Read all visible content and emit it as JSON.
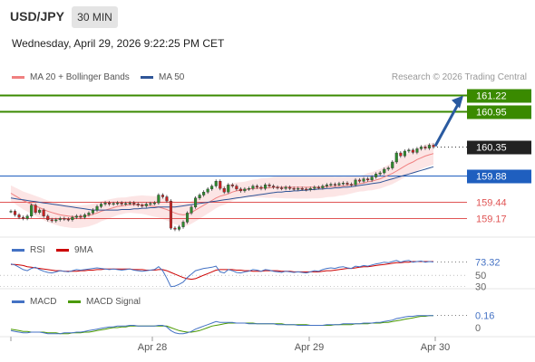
{
  "header": {
    "symbol": "USD/JPY",
    "interval": "30 MIN",
    "datetime": "Wednesday, April 29, 2026 9:22:25 PM CET",
    "credit": "Research © 2026 Trading Central"
  },
  "legend": {
    "main": [
      {
        "label": "MA 20 + Bollinger Bands",
        "color": "#f08080"
      },
      {
        "label": "MA 50",
        "color": "#2f5597"
      }
    ],
    "rsi": [
      {
        "label": "RSI",
        "color": "#4472c4"
      },
      {
        "label": "9MA",
        "color": "#cc0000"
      }
    ],
    "macd": [
      {
        "label": "MACD",
        "color": "#4472c4"
      },
      {
        "label": "MACD Signal",
        "color": "#4a9a00"
      }
    ]
  },
  "colors": {
    "target": "#3a8a00",
    "pivot": "#1f5fbf",
    "support": "#e05555",
    "current": "#222222",
    "bollinger": "#fbdcdc",
    "arrow": "#2a5aa0"
  },
  "chart_data": [
    {
      "type": "candlestick",
      "ylim": [
        158.85,
        161.35
      ],
      "x_ticks": [
        "Apr 28",
        "Apr 29",
        "Apr 30"
      ],
      "levels": [
        {
          "name": "target-2",
          "value": 161.22,
          "label": "161.22",
          "kind": "resistance"
        },
        {
          "name": "target-1",
          "value": 160.95,
          "label": "160.95",
          "kind": "resistance"
        },
        {
          "name": "last-price",
          "value": 160.35,
          "label": "160.35",
          "kind": "current"
        },
        {
          "name": "pivot",
          "value": 159.88,
          "label": "159.88",
          "kind": "pivot"
        },
        {
          "name": "support-1",
          "value": 159.44,
          "label": "159.44",
          "kind": "support"
        },
        {
          "name": "support-2",
          "value": 159.17,
          "label": "159.17",
          "kind": "support"
        }
      ],
      "close": [
        159.28,
        159.22,
        159.18,
        159.16,
        159.2,
        159.38,
        159.26,
        159.3,
        159.2,
        159.14,
        159.12,
        159.14,
        159.16,
        159.15,
        159.14,
        159.18,
        159.2,
        159.18,
        159.22,
        159.25,
        159.3,
        159.36,
        159.4,
        159.42,
        159.4,
        159.41,
        159.42,
        159.4,
        159.41,
        159.42,
        159.4,
        159.38,
        159.37,
        159.4,
        159.41,
        159.42,
        159.55,
        159.52,
        159.45,
        159.0,
        158.98,
        159.02,
        159.1,
        159.25,
        159.35,
        159.5,
        159.55,
        159.6,
        159.65,
        159.7,
        159.78,
        159.66,
        159.6,
        159.72,
        159.7,
        159.65,
        159.62,
        159.65,
        159.66,
        159.7,
        159.68,
        159.66,
        159.72,
        159.7,
        159.68,
        159.67,
        159.66,
        159.68,
        159.66,
        159.65,
        159.66,
        159.65,
        159.64,
        159.66,
        159.68,
        159.67,
        159.7,
        159.72,
        159.73,
        159.72,
        159.74,
        159.75,
        159.73,
        159.72,
        159.8,
        159.78,
        159.82,
        159.8,
        159.85,
        159.9,
        159.92,
        159.98,
        160.0,
        160.1,
        160.25,
        160.2,
        160.28,
        160.3,
        160.26,
        160.32,
        160.35,
        160.33,
        160.38,
        160.35
      ],
      "ma20": [
        159.58,
        159.54,
        159.5,
        159.46,
        159.43,
        159.4,
        159.37,
        159.34,
        159.31,
        159.28,
        159.26,
        159.24,
        159.22,
        159.21,
        159.2,
        159.19,
        159.19,
        159.19,
        159.2,
        159.21,
        159.23,
        159.25,
        159.28,
        159.3,
        159.32,
        159.34,
        159.36,
        159.37,
        159.38,
        159.39,
        159.39,
        159.39,
        159.39,
        159.38,
        159.37,
        159.36,
        159.35,
        159.33,
        159.31,
        159.28,
        159.25,
        159.23,
        159.22,
        159.23,
        159.26,
        159.3,
        159.34,
        159.38,
        159.42,
        159.46,
        159.5,
        159.53,
        159.55,
        159.57,
        159.6,
        159.62,
        159.63,
        159.64,
        159.65,
        159.66,
        159.66,
        159.67,
        159.67,
        159.67,
        159.68,
        159.68,
        159.68,
        159.68,
        159.68,
        159.68,
        159.68,
        159.68,
        159.68,
        159.68,
        159.68,
        159.68,
        159.68,
        159.69,
        159.69,
        159.69,
        159.7,
        159.7,
        159.71,
        159.72,
        159.73,
        159.74,
        159.75,
        159.77,
        159.78,
        159.8,
        159.82,
        159.85,
        159.88,
        159.91,
        159.95,
        159.99,
        160.03,
        160.07,
        160.1,
        160.14,
        160.17,
        160.2,
        160.22,
        160.24
      ],
      "ma50": [
        159.5,
        159.49,
        159.48,
        159.47,
        159.46,
        159.45,
        159.44,
        159.43,
        159.42,
        159.41,
        159.4,
        159.39,
        159.38,
        159.37,
        159.36,
        159.35,
        159.34,
        159.33,
        159.32,
        159.31,
        159.3,
        159.3,
        159.3,
        159.3,
        159.3,
        159.3,
        159.3,
        159.31,
        159.31,
        159.31,
        159.32,
        159.32,
        159.33,
        159.33,
        159.34,
        159.34,
        159.35,
        159.35,
        159.35,
        159.35,
        159.35,
        159.36,
        159.37,
        159.38,
        159.39,
        159.4,
        159.41,
        159.42,
        159.43,
        159.44,
        159.45,
        159.46,
        159.47,
        159.48,
        159.49,
        159.5,
        159.51,
        159.52,
        159.53,
        159.54,
        159.55,
        159.56,
        159.57,
        159.58,
        159.59,
        159.6,
        159.6,
        159.61,
        159.61,
        159.62,
        159.62,
        159.63,
        159.63,
        159.64,
        159.64,
        159.65,
        159.65,
        159.66,
        159.66,
        159.67,
        159.67,
        159.68,
        159.68,
        159.69,
        159.7,
        159.71,
        159.72,
        159.73,
        159.74,
        159.75,
        159.76,
        159.78,
        159.8,
        159.82,
        159.84,
        159.86,
        159.88,
        159.9,
        159.92,
        159.94,
        159.96,
        159.98,
        160.0,
        160.02
      ]
    },
    {
      "type": "line",
      "name": "RSI",
      "ylim": [
        28,
        82
      ],
      "tick_labels": [
        "73.32",
        "50",
        "30"
      ],
      "ticks": [
        73.32,
        50,
        30
      ],
      "series": [
        {
          "name": "RSI",
          "values": [
            70,
            68,
            64,
            60,
            58,
            62,
            64,
            60,
            57,
            55,
            54,
            56,
            58,
            57,
            56,
            58,
            60,
            59,
            60,
            61,
            62,
            63,
            62,
            61,
            60,
            61,
            60,
            59,
            60,
            61,
            59,
            58,
            57,
            58,
            59,
            60,
            65,
            58,
            45,
            30,
            31,
            34,
            38,
            46,
            52,
            58,
            60,
            62,
            63,
            64,
            66,
            56,
            54,
            60,
            58,
            55,
            54,
            56,
            57,
            60,
            59,
            57,
            60,
            59,
            57,
            56,
            55,
            57,
            56,
            55,
            56,
            55,
            54,
            56,
            58,
            57,
            60,
            62,
            63,
            62,
            64,
            65,
            63,
            62,
            66,
            65,
            67,
            66,
            68,
            70,
            71,
            73,
            72,
            74,
            76,
            73,
            75,
            76,
            73,
            74,
            75,
            73,
            74,
            73.32
          ]
        },
        {
          "name": "9MA",
          "values": [
            69,
            69,
            68,
            67,
            65,
            64,
            63,
            62,
            61,
            60,
            59,
            58,
            58,
            57,
            57,
            57,
            57,
            58,
            58,
            59,
            59,
            60,
            60,
            61,
            61,
            61,
            61,
            61,
            61,
            61,
            60,
            60,
            60,
            59,
            59,
            59,
            60,
            60,
            58,
            55,
            52,
            49,
            46,
            44,
            43,
            44,
            47,
            50,
            53,
            56,
            59,
            60,
            60,
            60,
            60,
            59,
            59,
            58,
            58,
            57,
            57,
            57,
            58,
            58,
            58,
            58,
            57,
            57,
            57,
            56,
            56,
            56,
            56,
            56,
            56,
            56,
            57,
            58,
            58,
            59,
            60,
            61,
            62,
            62,
            63,
            64,
            65,
            65,
            66,
            67,
            68,
            69,
            70,
            71,
            72,
            72,
            73,
            73,
            74,
            74,
            74,
            74,
            74,
            74
          ]
        }
      ]
    },
    {
      "type": "line",
      "name": "MACD",
      "ylim": [
        -0.12,
        0.24
      ],
      "tick_labels": [
        "0.16",
        "0"
      ],
      "ticks": [
        0.16,
        0
      ],
      "series": [
        {
          "name": "MACD",
          "values": [
            -0.04,
            -0.05,
            -0.06,
            -0.07,
            -0.07,
            -0.06,
            -0.06,
            -0.06,
            -0.07,
            -0.08,
            -0.08,
            -0.08,
            -0.08,
            -0.07,
            -0.07,
            -0.07,
            -0.06,
            -0.06,
            -0.05,
            -0.04,
            -0.03,
            -0.02,
            -0.01,
            0.0,
            0.01,
            0.01,
            0.02,
            0.02,
            0.02,
            0.03,
            0.03,
            0.02,
            0.02,
            0.02,
            0.02,
            0.02,
            0.03,
            0.03,
            0.01,
            -0.04,
            -0.07,
            -0.08,
            -0.08,
            -0.07,
            -0.05,
            -0.02,
            0.0,
            0.02,
            0.04,
            0.06,
            0.08,
            0.07,
            0.07,
            0.07,
            0.07,
            0.06,
            0.06,
            0.06,
            0.05,
            0.05,
            0.05,
            0.05,
            0.05,
            0.05,
            0.05,
            0.04,
            0.04,
            0.04,
            0.04,
            0.04,
            0.03,
            0.03,
            0.03,
            0.03,
            0.03,
            0.03,
            0.03,
            0.04,
            0.04,
            0.04,
            0.04,
            0.05,
            0.05,
            0.05,
            0.05,
            0.05,
            0.06,
            0.06,
            0.06,
            0.07,
            0.07,
            0.08,
            0.09,
            0.1,
            0.12,
            0.13,
            0.14,
            0.15,
            0.15,
            0.16,
            0.16,
            0.16,
            0.16,
            0.16
          ]
        },
        {
          "name": "MACD Signal",
          "values": [
            -0.02,
            -0.03,
            -0.04,
            -0.05,
            -0.05,
            -0.06,
            -0.06,
            -0.06,
            -0.06,
            -0.07,
            -0.07,
            -0.07,
            -0.08,
            -0.08,
            -0.08,
            -0.07,
            -0.07,
            -0.07,
            -0.06,
            -0.06,
            -0.05,
            -0.04,
            -0.03,
            -0.02,
            -0.01,
            0.0,
            0.0,
            0.01,
            0.01,
            0.02,
            0.02,
            0.02,
            0.02,
            0.02,
            0.02,
            0.02,
            0.02,
            0.02,
            0.02,
            0.0,
            -0.02,
            -0.04,
            -0.05,
            -0.06,
            -0.06,
            -0.05,
            -0.04,
            -0.02,
            0.0,
            0.02,
            0.03,
            0.04,
            0.05,
            0.06,
            0.06,
            0.06,
            0.06,
            0.06,
            0.06,
            0.06,
            0.05,
            0.05,
            0.05,
            0.05,
            0.05,
            0.05,
            0.05,
            0.04,
            0.04,
            0.04,
            0.04,
            0.04,
            0.04,
            0.03,
            0.03,
            0.03,
            0.03,
            0.03,
            0.03,
            0.04,
            0.04,
            0.04,
            0.04,
            0.04,
            0.05,
            0.05,
            0.05,
            0.05,
            0.06,
            0.06,
            0.06,
            0.07,
            0.07,
            0.08,
            0.09,
            0.1,
            0.11,
            0.12,
            0.13,
            0.14,
            0.15,
            0.15,
            0.16,
            0.16
          ]
        }
      ]
    }
  ]
}
